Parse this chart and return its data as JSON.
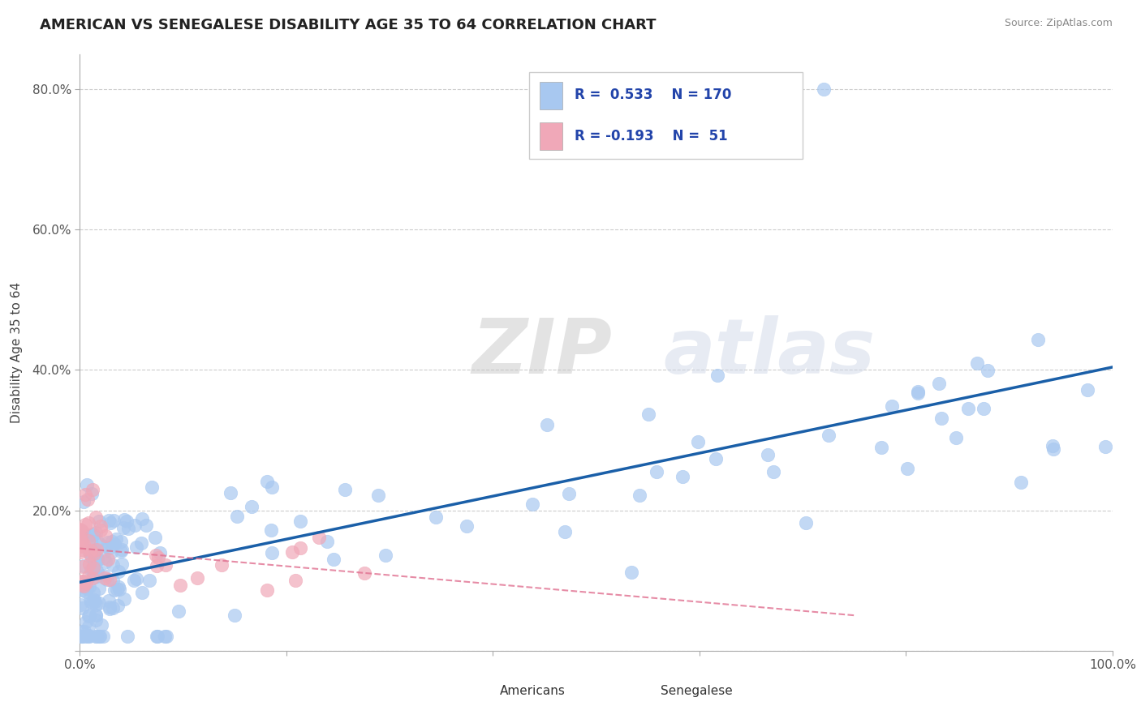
{
  "title": "AMERICAN VS SENEGALESE DISABILITY AGE 35 TO 64 CORRELATION CHART",
  "source": "Source: ZipAtlas.com",
  "ylabel": "Disability Age 35 to 64",
  "xlim": [
    0,
    1.0
  ],
  "ylim": [
    0,
    0.85
  ],
  "x_tick_positions": [
    0.0,
    0.2,
    0.4,
    0.6,
    0.8,
    1.0
  ],
  "x_tick_labels": [
    "0.0%",
    "",
    "",
    "",
    "",
    "100.0%"
  ],
  "y_tick_positions": [
    0.0,
    0.2,
    0.4,
    0.6,
    0.8
  ],
  "y_tick_labels": [
    "",
    "20.0%",
    "40.0%",
    "60.0%",
    "80.0%"
  ],
  "r_american": 0.533,
  "n_american": 170,
  "r_senegalese": -0.193,
  "n_senegalese": 51,
  "american_color": "#a8c8f0",
  "senegalese_color": "#f0a8b8",
  "trend_american_color": "#1a5fa8",
  "trend_senegalese_color": "#e07090",
  "background_color": "#ffffff",
  "legend_color": "#2244aa",
  "grid_color": "#cccccc",
  "watermark_color": "#d0d8e8",
  "watermark_zip_color": "#c8c8c8"
}
